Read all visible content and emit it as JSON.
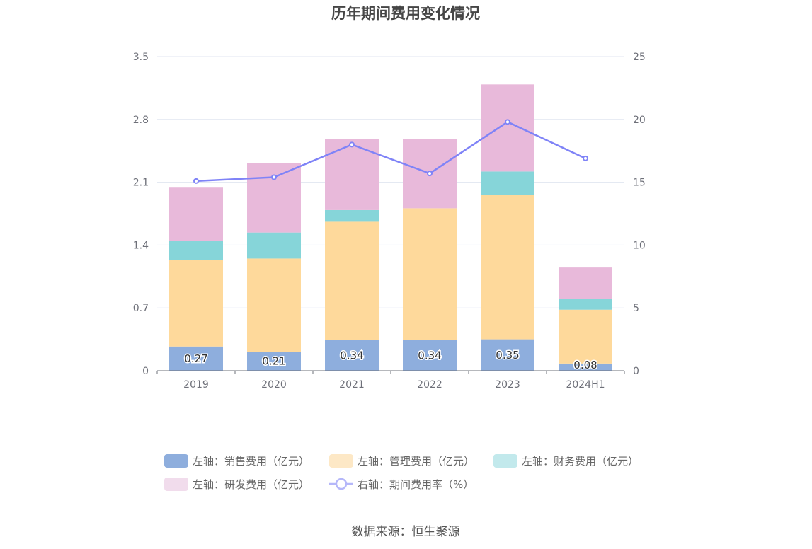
{
  "chart_data": {
    "type": "bar",
    "title": "历年期间费用变化情况",
    "categories": [
      "2019",
      "2020",
      "2021",
      "2022",
      "2023",
      "2024H1"
    ],
    "stacked": true,
    "y_left": {
      "ticks": [
        "0",
        "0.7",
        "1.4",
        "2.1",
        "2.8",
        "3.5"
      ],
      "ylim": [
        0,
        3.5
      ]
    },
    "y_right": {
      "ticks": [
        "0",
        "5",
        "10",
        "15",
        "20",
        "25"
      ],
      "ylim": [
        0,
        25
      ]
    },
    "grid": true,
    "legend_position": "bottom",
    "series": [
      {
        "name": "左轴：销售费用（亿元）",
        "axis": "left",
        "type": "bar",
        "color": "#8eaedd",
        "values": [
          0.27,
          0.21,
          0.34,
          0.34,
          0.35,
          0.08
        ],
        "labels": [
          "0.27",
          "0.21",
          "0.34",
          "0.34",
          "0.35",
          "0.08"
        ]
      },
      {
        "name": "左轴：管理费用（亿元）",
        "axis": "left",
        "type": "bar",
        "color": "#fed99b",
        "values": [
          0.96,
          1.04,
          1.32,
          1.47,
          1.61,
          0.6
        ]
      },
      {
        "name": "左轴：财务费用（亿元）",
        "axis": "left",
        "type": "bar",
        "color": "#86d5d9",
        "values": [
          0.22,
          0.29,
          0.13,
          0.0,
          0.26,
          0.12
        ]
      },
      {
        "name": "左轴：研发费用（亿元）",
        "axis": "left",
        "type": "bar",
        "color": "#e8b9da",
        "values": [
          0.59,
          0.77,
          0.79,
          0.77,
          0.97,
          0.35
        ]
      },
      {
        "name": "右轴：期间费用率（%）",
        "axis": "right",
        "type": "line",
        "color": "#7f83f7",
        "values": [
          15.1,
          15.4,
          18.0,
          15.7,
          19.8,
          16.9
        ]
      }
    ]
  },
  "legend": [
    {
      "label": "左轴：销售费用（亿元）",
      "type": "rect",
      "color": "#8eaedd"
    },
    {
      "label": "左轴：管理费用（亿元）",
      "type": "rect",
      "color": "#fde8c6"
    },
    {
      "label": "左轴：财务费用（亿元）",
      "type": "rect",
      "color": "#c2e9ec"
    },
    {
      "label": "左轴：研发费用（亿元）",
      "type": "rect",
      "color": "#f1dcec"
    },
    {
      "label": "右轴：期间费用率（%）",
      "type": "line",
      "color": "#b5b7f9"
    }
  ],
  "source": "数据来源：恒生聚源"
}
